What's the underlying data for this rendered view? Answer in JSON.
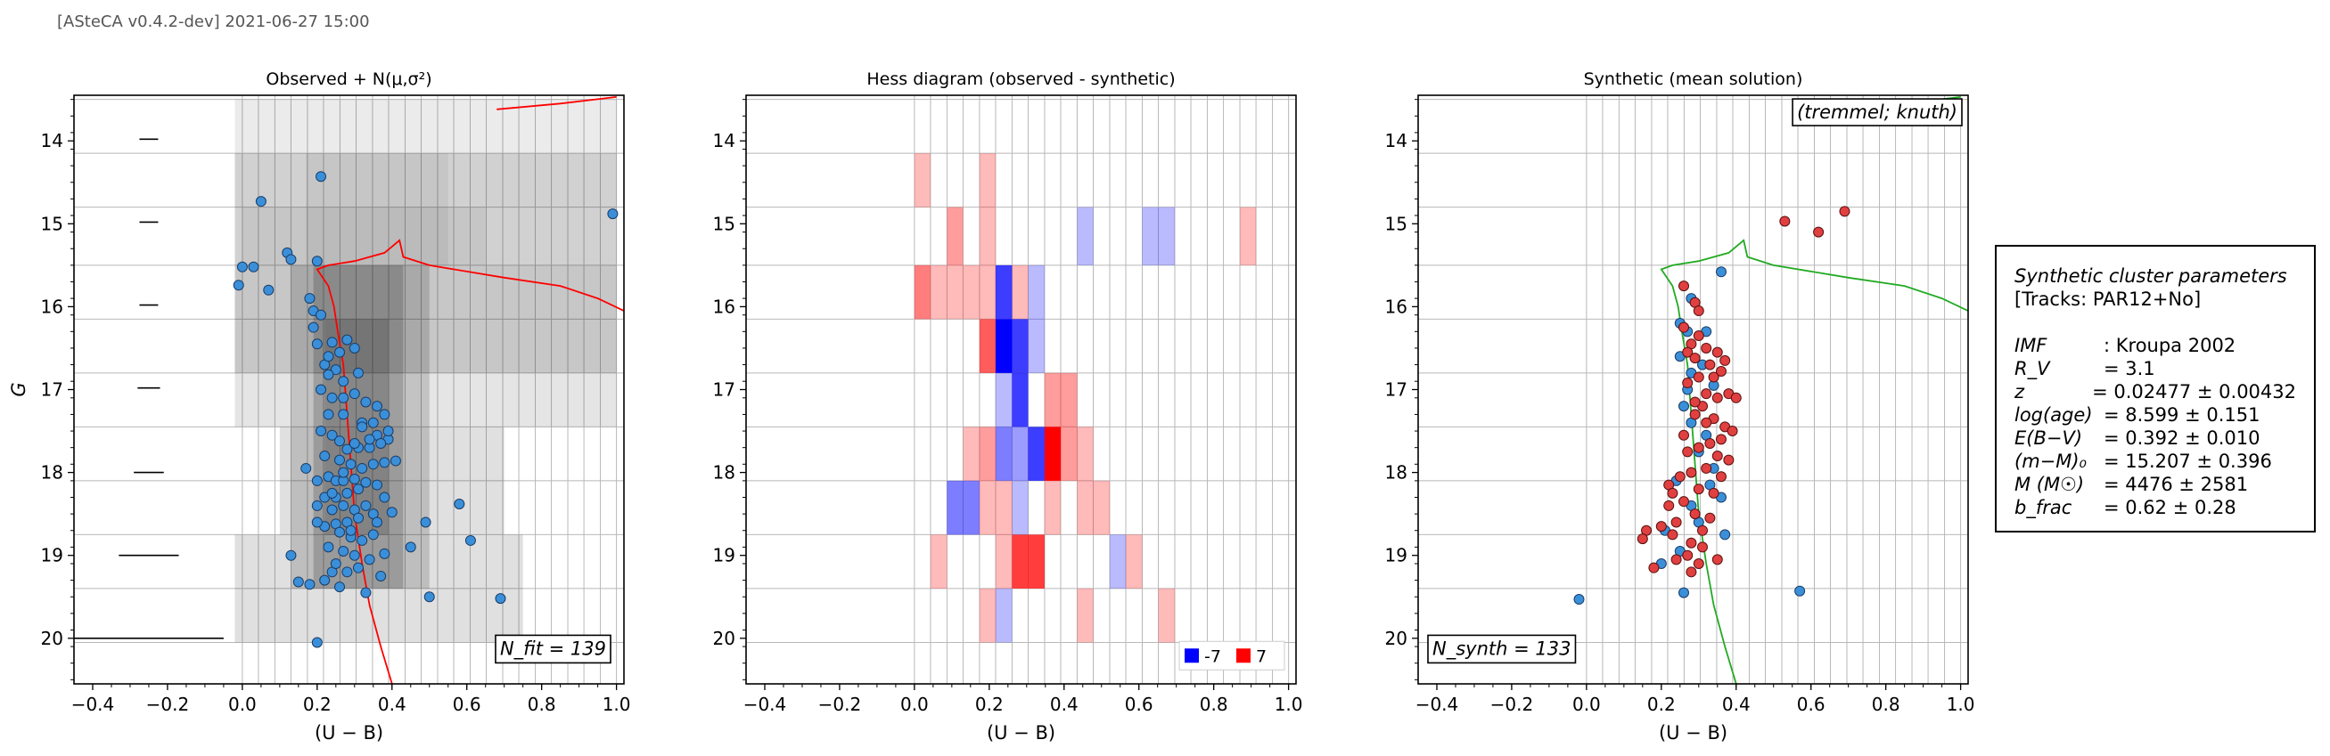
{
  "header": "[ASteCA v0.4.2-dev] 2021-06-27 15:00",
  "colors": {
    "observed_points": "#3b8fd9",
    "synthetic_points": "#e04040",
    "isochrone_observed": "#ff0000",
    "isochrone_synthetic": "#22aa22",
    "hess_negative": "#0000ff",
    "hess_positive": "#ff0000"
  },
  "chart_data": [
    {
      "type": "scatter",
      "panel": "observed",
      "title": "Observed + N(μ,σ²)",
      "xlabel": "(U − B)",
      "ylabel": "G",
      "xlim": [
        -0.45,
        1.02
      ],
      "ylim": [
        20.55,
        13.45
      ],
      "xticks": [
        "−0.4",
        "−0.2",
        "0.0",
        "0.2",
        "0.4",
        "0.6",
        "0.8",
        "1.0"
      ],
      "yticks": [
        "14",
        "15",
        "16",
        "17",
        "18",
        "19",
        "20"
      ],
      "annotation": "N_fit = 139",
      "error_bars": [
        {
          "y": 13.98,
          "xerr": 0.025
        },
        {
          "y": 14.98,
          "xerr": 0.025
        },
        {
          "y": 15.98,
          "xerr": 0.025
        },
        {
          "y": 16.98,
          "xerr": 0.03
        },
        {
          "y": 18.0,
          "xerr": 0.04
        },
        {
          "y": 19.0,
          "xerr": 0.08
        },
        {
          "y": 20.0,
          "xerr": 0.2
        }
      ],
      "points": [
        [
          0.21,
          14.43
        ],
        [
          0.99,
          14.88
        ],
        [
          0.05,
          14.73
        ],
        [
          0.0,
          15.52
        ],
        [
          0.03,
          15.52
        ],
        [
          -0.01,
          15.74
        ],
        [
          0.07,
          15.8
        ],
        [
          0.12,
          15.35
        ],
        [
          0.13,
          15.43
        ],
        [
          0.18,
          15.9
        ],
        [
          0.19,
          16.05
        ],
        [
          0.21,
          16.1
        ],
        [
          0.2,
          15.45
        ],
        [
          0.19,
          16.25
        ],
        [
          0.2,
          16.45
        ],
        [
          0.24,
          16.43
        ],
        [
          0.26,
          16.55
        ],
        [
          0.22,
          16.7
        ],
        [
          0.25,
          16.76
        ],
        [
          0.28,
          16.4
        ],
        [
          0.3,
          16.5
        ],
        [
          0.31,
          16.8
        ],
        [
          0.27,
          16.9
        ],
        [
          0.23,
          16.82
        ],
        [
          0.21,
          17.0
        ],
        [
          0.24,
          17.1
        ],
        [
          0.27,
          17.1
        ],
        [
          0.3,
          17.05
        ],
        [
          0.33,
          17.15
        ],
        [
          0.36,
          17.2
        ],
        [
          0.38,
          17.3
        ],
        [
          0.35,
          17.4
        ],
        [
          0.32,
          17.4
        ],
        [
          0.36,
          17.55
        ],
        [
          0.39,
          17.6
        ],
        [
          0.37,
          17.65
        ],
        [
          0.34,
          17.7
        ],
        [
          0.31,
          17.7
        ],
        [
          0.28,
          17.72
        ],
        [
          0.22,
          17.8
        ],
        [
          0.26,
          17.85
        ],
        [
          0.29,
          17.9
        ],
        [
          0.32,
          17.95
        ],
        [
          0.35,
          17.9
        ],
        [
          0.38,
          17.88
        ],
        [
          0.41,
          17.86
        ],
        [
          0.39,
          17.5
        ],
        [
          0.34,
          17.6
        ],
        [
          0.21,
          17.5
        ],
        [
          0.24,
          17.55
        ],
        [
          0.26,
          17.62
        ],
        [
          0.3,
          17.65
        ],
        [
          0.23,
          17.3
        ],
        [
          0.27,
          17.3
        ],
        [
          0.17,
          17.95
        ],
        [
          0.2,
          18.1
        ],
        [
          0.23,
          18.05
        ],
        [
          0.25,
          18.1
        ],
        [
          0.27,
          18.1
        ],
        [
          0.3,
          18.08
        ],
        [
          0.33,
          18.12
        ],
        [
          0.36,
          18.15
        ],
        [
          0.31,
          18.2
        ],
        [
          0.28,
          18.25
        ],
        [
          0.25,
          18.3
        ],
        [
          0.22,
          18.3
        ],
        [
          0.2,
          18.4
        ],
        [
          0.24,
          18.45
        ],
        [
          0.27,
          18.4
        ],
        [
          0.3,
          18.45
        ],
        [
          0.33,
          18.4
        ],
        [
          0.38,
          18.3
        ],
        [
          0.35,
          18.5
        ],
        [
          0.31,
          18.55
        ],
        [
          0.28,
          18.6
        ],
        [
          0.25,
          18.62
        ],
        [
          0.22,
          18.65
        ],
        [
          0.2,
          18.6
        ],
        [
          0.26,
          18.72
        ],
        [
          0.29,
          18.78
        ],
        [
          0.32,
          18.82
        ],
        [
          0.35,
          18.75
        ],
        [
          0.36,
          18.6
        ],
        [
          0.4,
          18.48
        ],
        [
          0.49,
          18.6
        ],
        [
          0.58,
          18.38
        ],
        [
          0.61,
          18.82
        ],
        [
          0.23,
          18.9
        ],
        [
          0.27,
          18.95
        ],
        [
          0.3,
          19.0
        ],
        [
          0.34,
          19.05
        ],
        [
          0.38,
          18.98
        ],
        [
          0.45,
          18.9
        ],
        [
          0.31,
          19.15
        ],
        [
          0.28,
          19.2
        ],
        [
          0.24,
          19.2
        ],
        [
          0.22,
          19.3
        ],
        [
          0.18,
          19.35
        ],
        [
          0.15,
          19.32
        ],
        [
          0.13,
          19.0
        ],
        [
          0.26,
          19.38
        ],
        [
          0.33,
          19.45
        ],
        [
          0.5,
          19.5
        ],
        [
          0.69,
          19.52
        ],
        [
          0.2,
          20.05
        ],
        [
          0.25,
          19.1
        ],
        [
          0.37,
          19.25
        ],
        [
          0.29,
          18.7
        ],
        [
          0.24,
          18.25
        ],
        [
          0.27,
          18.0
        ],
        [
          0.32,
          17.45
        ],
        [
          0.23,
          16.6
        ]
      ]
    },
    {
      "type": "heatmap",
      "panel": "hess",
      "title": "Hess diagram (observed - synthetic)",
      "xlabel": "(U − B)",
      "xlim": [
        -0.45,
        1.02
      ],
      "ylim": [
        20.55,
        13.45
      ],
      "xticks": [
        "−0.4",
        "−0.2",
        "0.0",
        "0.2",
        "0.4",
        "0.6",
        "0.8",
        "1.0"
      ],
      "yticks": [
        "14",
        "15",
        "16",
        "17",
        "18",
        "19",
        "20"
      ],
      "colorbar_min": -7,
      "colorbar_max": 7,
      "legend": [
        {
          "label": "-7",
          "color": "#0000ff"
        },
        {
          "label": "7",
          "color": "#ff0000"
        }
      ],
      "x_edges": [
        0.0,
        0.043,
        0.087,
        0.13,
        0.174,
        0.217,
        0.261,
        0.304,
        0.348,
        0.391,
        0.435,
        0.478,
        0.522,
        0.565,
        0.609,
        0.652,
        0.696,
        0.739,
        0.783,
        0.826,
        0.87,
        0.913,
        0.957,
        1.0
      ],
      "y_edges": [
        13.5,
        14.15,
        14.8,
        15.5,
        16.15,
        16.8,
        17.45,
        18.1,
        18.75,
        19.4,
        20.05
      ],
      "cells": [
        {
          "col": 0,
          "row": 1,
          "v": 1
        },
        {
          "col": 4,
          "row": 1,
          "v": 1
        },
        {
          "col": 2,
          "row": 2,
          "v": 2
        },
        {
          "col": 4,
          "row": 2,
          "v": 1
        },
        {
          "col": 10,
          "row": 2,
          "v": -1
        },
        {
          "col": 14,
          "row": 2,
          "v": -1
        },
        {
          "col": 15,
          "row": 2,
          "v": -1
        },
        {
          "col": 20,
          "row": 2,
          "v": 1
        },
        {
          "col": 0,
          "row": 3,
          "v": 3
        },
        {
          "col": 1,
          "row": 3,
          "v": 1
        },
        {
          "col": 2,
          "row": 3,
          "v": 1
        },
        {
          "col": 3,
          "row": 3,
          "v": 1
        },
        {
          "col": 4,
          "row": 3,
          "v": 1
        },
        {
          "col": 5,
          "row": 3,
          "v": -5
        },
        {
          "col": 6,
          "row": 3,
          "v": 1
        },
        {
          "col": 7,
          "row": 3,
          "v": -1
        },
        {
          "col": 4,
          "row": 4,
          "v": 4
        },
        {
          "col": 5,
          "row": 4,
          "v": -7
        },
        {
          "col": 6,
          "row": 4,
          "v": -5
        },
        {
          "col": 7,
          "row": 4,
          "v": -1
        },
        {
          "col": 5,
          "row": 5,
          "v": -1
        },
        {
          "col": 6,
          "row": 5,
          "v": -5
        },
        {
          "col": 8,
          "row": 5,
          "v": 2
        },
        {
          "col": 9,
          "row": 5,
          "v": 2
        },
        {
          "col": 3,
          "row": 6,
          "v": 1
        },
        {
          "col": 4,
          "row": 6,
          "v": 2
        },
        {
          "col": 5,
          "row": 6,
          "v": -3
        },
        {
          "col": 6,
          "row": 6,
          "v": -2
        },
        {
          "col": 7,
          "row": 6,
          "v": -5
        },
        {
          "col": 8,
          "row": 6,
          "v": 7
        },
        {
          "col": 9,
          "row": 6,
          "v": 2
        },
        {
          "col": 10,
          "row": 6,
          "v": 1
        },
        {
          "col": 2,
          "row": 7,
          "v": -3
        },
        {
          "col": 3,
          "row": 7,
          "v": -3
        },
        {
          "col": 4,
          "row": 7,
          "v": 1
        },
        {
          "col": 5,
          "row": 7,
          "v": 1
        },
        {
          "col": 6,
          "row": 7,
          "v": -1
        },
        {
          "col": 8,
          "row": 7,
          "v": 1
        },
        {
          "col": 10,
          "row": 7,
          "v": 1
        },
        {
          "col": 11,
          "row": 7,
          "v": 1
        },
        {
          "col": 1,
          "row": 8,
          "v": 1
        },
        {
          "col": 5,
          "row": 8,
          "v": 1
        },
        {
          "col": 6,
          "row": 8,
          "v": 5
        },
        {
          "col": 7,
          "row": 8,
          "v": 5
        },
        {
          "col": 12,
          "row": 8,
          "v": -1
        },
        {
          "col": 13,
          "row": 8,
          "v": 1
        },
        {
          "col": 4,
          "row": 9,
          "v": 1
        },
        {
          "col": 5,
          "row": 9,
          "v": -1
        },
        {
          "col": 10,
          "row": 9,
          "v": 1
        },
        {
          "col": 15,
          "row": 9,
          "v": 1
        }
      ]
    },
    {
      "type": "scatter",
      "panel": "synthetic",
      "title": "Synthetic (mean solution)",
      "xlabel": "(U − B)",
      "xlim": [
        -0.45,
        1.02
      ],
      "ylim": [
        20.55,
        13.45
      ],
      "xticks": [
        "−0.4",
        "−0.2",
        "0.0",
        "0.2",
        "0.4",
        "0.6",
        "0.8",
        "1.0"
      ],
      "yticks": [
        "14",
        "15",
        "16",
        "17",
        "18",
        "19",
        "20"
      ],
      "annotation": "N_synth = 133",
      "annotation_top": "(tremmel; knuth)",
      "points_blue": [
        [
          0.36,
          15.58
        ],
        [
          0.28,
          15.9
        ],
        [
          0.25,
          16.2
        ],
        [
          0.27,
          16.3
        ],
        [
          0.25,
          16.6
        ],
        [
          0.31,
          16.7
        ],
        [
          0.28,
          16.8
        ],
        [
          0.34,
          16.95
        ],
        [
          0.26,
          17.2
        ],
        [
          0.28,
          17.4
        ],
        [
          0.32,
          17.55
        ],
        [
          0.34,
          17.95
        ],
        [
          0.33,
          18.15
        ],
        [
          0.24,
          18.1
        ],
        [
          0.36,
          18.3
        ],
        [
          0.28,
          18.4
        ],
        [
          0.3,
          18.6
        ],
        [
          0.37,
          18.75
        ],
        [
          0.25,
          18.95
        ],
        [
          0.2,
          19.1
        ],
        [
          0.26,
          19.45
        ],
        [
          0.57,
          19.43
        ],
        [
          -0.02,
          19.53
        ],
        [
          0.21,
          18.7
        ],
        [
          0.3,
          17.75
        ],
        [
          0.27,
          17.0
        ],
        [
          0.32,
          16.3
        ]
      ],
      "points_red": [
        [
          0.53,
          14.97
        ],
        [
          0.62,
          15.1
        ],
        [
          0.69,
          14.85
        ],
        [
          0.26,
          15.75
        ],
        [
          0.29,
          15.95
        ],
        [
          0.3,
          16.05
        ],
        [
          0.26,
          16.25
        ],
        [
          0.3,
          16.35
        ],
        [
          0.28,
          16.45
        ],
        [
          0.32,
          16.5
        ],
        [
          0.27,
          16.55
        ],
        [
          0.29,
          16.62
        ],
        [
          0.35,
          16.55
        ],
        [
          0.37,
          16.65
        ],
        [
          0.33,
          16.7
        ],
        [
          0.36,
          16.78
        ],
        [
          0.3,
          16.85
        ],
        [
          0.27,
          16.92
        ],
        [
          0.32,
          17.05
        ],
        [
          0.35,
          17.1
        ],
        [
          0.38,
          17.05
        ],
        [
          0.4,
          17.1
        ],
        [
          0.31,
          17.2
        ],
        [
          0.29,
          17.3
        ],
        [
          0.34,
          17.35
        ],
        [
          0.37,
          17.45
        ],
        [
          0.39,
          17.5
        ],
        [
          0.36,
          17.6
        ],
        [
          0.33,
          17.65
        ],
        [
          0.3,
          17.7
        ],
        [
          0.27,
          17.75
        ],
        [
          0.35,
          17.8
        ],
        [
          0.38,
          17.85
        ],
        [
          0.32,
          17.95
        ],
        [
          0.28,
          18.0
        ],
        [
          0.25,
          18.05
        ],
        [
          0.22,
          18.15
        ],
        [
          0.3,
          18.2
        ],
        [
          0.34,
          18.25
        ],
        [
          0.26,
          18.35
        ],
        [
          0.22,
          18.4
        ],
        [
          0.29,
          18.5
        ],
        [
          0.33,
          18.55
        ],
        [
          0.24,
          18.6
        ],
        [
          0.2,
          18.65
        ],
        [
          0.16,
          18.7
        ],
        [
          0.15,
          18.8
        ],
        [
          0.23,
          18.75
        ],
        [
          0.28,
          18.85
        ],
        [
          0.31,
          18.9
        ],
        [
          0.27,
          19.0
        ],
        [
          0.24,
          19.05
        ],
        [
          0.3,
          19.1
        ],
        [
          0.35,
          19.05
        ],
        [
          0.18,
          19.15
        ],
        [
          0.28,
          19.2
        ],
        [
          0.32,
          17.4
        ],
        [
          0.26,
          17.55
        ],
        [
          0.36,
          18.05
        ],
        [
          0.31,
          18.7
        ],
        [
          0.23,
          18.25
        ],
        [
          0.34,
          16.85
        ],
        [
          0.29,
          17.15
        ]
      ]
    }
  ],
  "params": {
    "title": "Synthetic cluster parameters",
    "tracks": "[Tracks: PAR12+No]",
    "rows": [
      {
        "name": "IMF",
        "value": ": Kroupa 2002"
      },
      {
        "name": "R_V",
        "value": "=  3.1"
      },
      {
        "name": "z",
        "value": "=  0.02477 ± 0.00432"
      },
      {
        "name": "log(age)",
        "value": "=  8.599 ± 0.151"
      },
      {
        "name": "E(B−V)",
        "value": "=  0.392 ± 0.010"
      },
      {
        "name": "(m−M)₀",
        "value": "=  15.207 ± 0.396"
      },
      {
        "name": "M (M☉)",
        "value": "=  4476 ± 2581"
      },
      {
        "name": "b_frac",
        "value": "=  0.62 ± 0.28"
      }
    ]
  }
}
